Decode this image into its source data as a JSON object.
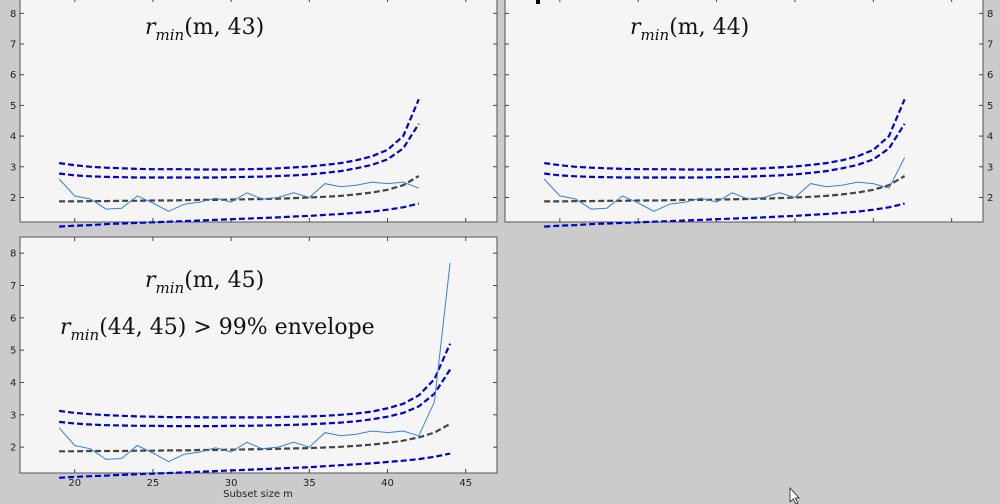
{
  "chart_data": [
    {
      "type": "line",
      "panel": "top-left",
      "x": [
        19,
        20,
        21,
        22,
        23,
        24,
        25,
        26,
        27,
        28,
        29,
        30,
        31,
        32,
        33,
        34,
        35,
        36,
        37,
        38,
        39,
        40,
        41,
        42
      ],
      "xlim": [
        16.5,
        47
      ],
      "ylim": [
        1.2,
        8.5
      ],
      "annotation": {
        "r": "r",
        "sub": "min",
        "args": "(m, 43)"
      },
      "series": [
        {
          "role": "env_upper_outer",
          "color": "#0000cc",
          "dashed": true,
          "values": [
            3.12,
            3.05,
            3.0,
            2.97,
            2.95,
            2.93,
            2.92,
            2.92,
            2.92,
            2.91,
            2.91,
            2.91,
            2.92,
            2.93,
            2.95,
            2.98,
            3.01,
            3.06,
            3.12,
            3.21,
            3.34,
            3.55,
            4.0,
            5.2
          ]
        },
        {
          "role": "env_upper_inner",
          "color": "#0000cc",
          "dashed": true,
          "values": [
            2.78,
            2.72,
            2.69,
            2.67,
            2.66,
            2.65,
            2.65,
            2.65,
            2.65,
            2.65,
            2.65,
            2.66,
            2.67,
            2.68,
            2.7,
            2.72,
            2.75,
            2.8,
            2.86,
            2.95,
            3.06,
            3.24,
            3.6,
            4.4
          ]
        },
        {
          "role": "mean",
          "color": "#444444",
          "dashed": true,
          "values": [
            1.87,
            1.87,
            1.88,
            1.88,
            1.89,
            1.89,
            1.9,
            1.9,
            1.91,
            1.92,
            1.92,
            1.93,
            1.94,
            1.95,
            1.96,
            1.98,
            2.0,
            2.02,
            2.05,
            2.1,
            2.16,
            2.25,
            2.4,
            2.7
          ]
        },
        {
          "role": "env_lower",
          "color": "#0000cc",
          "dashed": true,
          "values": [
            1.05,
            1.08,
            1.1,
            1.13,
            1.15,
            1.17,
            1.19,
            1.21,
            1.23,
            1.25,
            1.27,
            1.29,
            1.31,
            1.33,
            1.35,
            1.38,
            1.4,
            1.43,
            1.46,
            1.5,
            1.54,
            1.6,
            1.68,
            1.8
          ]
        },
        {
          "role": "observed",
          "color": "#3a7fd0",
          "dashed": false,
          "values": [
            2.6,
            2.05,
            1.95,
            1.62,
            1.65,
            2.05,
            1.82,
            1.55,
            1.78,
            1.85,
            1.98,
            1.85,
            2.15,
            1.95,
            2.0,
            2.15,
            2.0,
            2.45,
            2.35,
            2.4,
            2.5,
            2.45,
            2.5,
            2.3
          ]
        }
      ]
    },
    {
      "type": "line",
      "panel": "top-right",
      "x": [
        19,
        20,
        21,
        22,
        23,
        24,
        25,
        26,
        27,
        28,
        29,
        30,
        31,
        32,
        33,
        34,
        35,
        36,
        37,
        38,
        39,
        40,
        41,
        42
      ],
      "xlim": [
        16.5,
        47
      ],
      "ylim": [
        1.2,
        8.5
      ],
      "annotation": {
        "r": "r",
        "sub": "min",
        "args": "(m, 44)"
      },
      "series": [
        {
          "role": "env_upper_outer",
          "color": "#0000cc",
          "dashed": true,
          "values": [
            3.12,
            3.05,
            3.0,
            2.97,
            2.95,
            2.93,
            2.92,
            2.92,
            2.92,
            2.91,
            2.91,
            2.91,
            2.92,
            2.93,
            2.95,
            2.98,
            3.01,
            3.06,
            3.12,
            3.21,
            3.34,
            3.55,
            4.0,
            5.2
          ]
        },
        {
          "role": "env_upper_inner",
          "color": "#0000cc",
          "dashed": true,
          "values": [
            2.78,
            2.72,
            2.69,
            2.67,
            2.66,
            2.65,
            2.65,
            2.65,
            2.65,
            2.65,
            2.65,
            2.66,
            2.67,
            2.68,
            2.7,
            2.72,
            2.75,
            2.8,
            2.86,
            2.95,
            3.06,
            3.24,
            3.6,
            4.4
          ]
        },
        {
          "role": "mean",
          "color": "#444444",
          "dashed": true,
          "values": [
            1.87,
            1.87,
            1.88,
            1.88,
            1.89,
            1.89,
            1.9,
            1.9,
            1.91,
            1.92,
            1.92,
            1.93,
            1.94,
            1.95,
            1.96,
            1.98,
            2.0,
            2.02,
            2.05,
            2.1,
            2.16,
            2.25,
            2.4,
            2.7
          ]
        },
        {
          "role": "env_lower",
          "color": "#0000cc",
          "dashed": true,
          "values": [
            1.05,
            1.08,
            1.1,
            1.13,
            1.15,
            1.17,
            1.19,
            1.21,
            1.23,
            1.25,
            1.27,
            1.29,
            1.31,
            1.33,
            1.35,
            1.38,
            1.4,
            1.43,
            1.46,
            1.5,
            1.54,
            1.6,
            1.68,
            1.8
          ]
        },
        {
          "role": "observed",
          "color": "#3a7fd0",
          "dashed": false,
          "values": [
            2.6,
            2.05,
            1.95,
            1.62,
            1.65,
            2.05,
            1.82,
            1.55,
            1.78,
            1.85,
            1.98,
            1.85,
            2.15,
            1.95,
            2.0,
            2.15,
            2.0,
            2.45,
            2.35,
            2.4,
            2.5,
            2.45,
            2.3,
            3.3
          ]
        }
      ]
    },
    {
      "type": "line",
      "panel": "bottom-left",
      "x": [
        19,
        20,
        21,
        22,
        23,
        24,
        25,
        26,
        27,
        28,
        29,
        30,
        31,
        32,
        33,
        34,
        35,
        36,
        37,
        38,
        39,
        40,
        41,
        42,
        43,
        44
      ],
      "xlim": [
        16.5,
        47
      ],
      "ylim": [
        1.2,
        8.5
      ],
      "xticks": [
        20,
        25,
        30,
        35,
        40,
        45
      ],
      "xlabel": "Subset size m",
      "annotation": {
        "r": "r",
        "sub": "min",
        "args": "(m, 45)"
      },
      "annotation2": {
        "r": "r",
        "sub": "min",
        "args": "(44, 45) > 99% envelope"
      },
      "series": [
        {
          "role": "env_upper_outer",
          "color": "#0000cc",
          "dashed": true,
          "values": [
            3.12,
            3.06,
            3.02,
            2.99,
            2.97,
            2.95,
            2.94,
            2.93,
            2.93,
            2.92,
            2.92,
            2.92,
            2.92,
            2.92,
            2.93,
            2.94,
            2.95,
            2.97,
            3.0,
            3.04,
            3.1,
            3.2,
            3.34,
            3.6,
            4.1,
            5.2
          ]
        },
        {
          "role": "env_upper_inner",
          "color": "#0000cc",
          "dashed": true,
          "values": [
            2.78,
            2.73,
            2.7,
            2.68,
            2.67,
            2.66,
            2.66,
            2.65,
            2.65,
            2.65,
            2.65,
            2.66,
            2.66,
            2.67,
            2.68,
            2.69,
            2.71,
            2.73,
            2.76,
            2.8,
            2.86,
            2.94,
            3.06,
            3.26,
            3.65,
            4.4
          ]
        },
        {
          "role": "mean",
          "color": "#444444",
          "dashed": true,
          "values": [
            1.87,
            1.87,
            1.88,
            1.88,
            1.88,
            1.89,
            1.89,
            1.9,
            1.9,
            1.91,
            1.91,
            1.92,
            1.93,
            1.94,
            1.95,
            1.96,
            1.97,
            1.99,
            2.01,
            2.04,
            2.08,
            2.13,
            2.2,
            2.3,
            2.45,
            2.72
          ]
        },
        {
          "role": "env_lower",
          "color": "#0000cc",
          "dashed": true,
          "values": [
            1.05,
            1.08,
            1.1,
            1.12,
            1.14,
            1.16,
            1.18,
            1.2,
            1.22,
            1.24,
            1.26,
            1.28,
            1.3,
            1.32,
            1.34,
            1.36,
            1.38,
            1.41,
            1.44,
            1.47,
            1.5,
            1.54,
            1.58,
            1.63,
            1.7,
            1.8
          ]
        },
        {
          "role": "observed",
          "color": "#3a7fd0",
          "dashed": false,
          "values": [
            2.6,
            2.05,
            1.95,
            1.62,
            1.65,
            2.05,
            1.82,
            1.55,
            1.78,
            1.85,
            1.98,
            1.85,
            2.15,
            1.95,
            2.0,
            2.15,
            2.0,
            2.45,
            2.35,
            2.4,
            2.5,
            2.45,
            2.5,
            2.35,
            3.4,
            7.7
          ]
        }
      ]
    }
  ]
}
